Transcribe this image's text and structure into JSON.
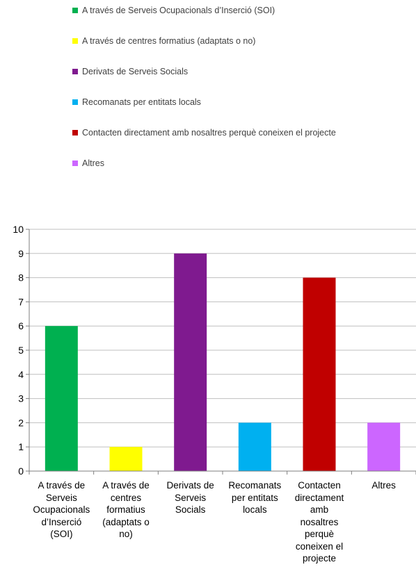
{
  "chart_data": {
    "type": "bar",
    "categories": [
      "A través de Serveis Ocupacionals d’Inserció (SOI)",
      "A través de centres formatius (adaptats o no)",
      "Derivats de Serveis Socials",
      "Recomanats per entitats locals",
      "Contacten directament amb nosaltres perquè coneixen el projecte",
      "Altres"
    ],
    "category_lines": [
      [
        "A través de",
        "Serveis",
        "Ocupacionals",
        "d’Inserció",
        "(SOI)"
      ],
      [
        "A través de",
        "centres",
        "formatius",
        "(adaptats o",
        "no)"
      ],
      [
        "Derivats de",
        "Serveis",
        "Socials"
      ],
      [
        "Recomanats",
        "per entitats",
        "locals"
      ],
      [
        "Contacten",
        "directament",
        "amb",
        "nosaltres",
        "perquè",
        "coneixen el",
        "projecte"
      ],
      [
        "Altres"
      ]
    ],
    "values": [
      6,
      1,
      9,
      2,
      8,
      2
    ],
    "colors": [
      "#00b050",
      "#ffff00",
      "#7f1a8f",
      "#00b0f0",
      "#c00000",
      "#cc66ff"
    ],
    "ylim": [
      0,
      10
    ],
    "yticks": [
      0,
      1,
      2,
      3,
      4,
      5,
      6,
      7,
      8,
      9,
      10
    ],
    "grid": true,
    "legend_position": "top"
  }
}
